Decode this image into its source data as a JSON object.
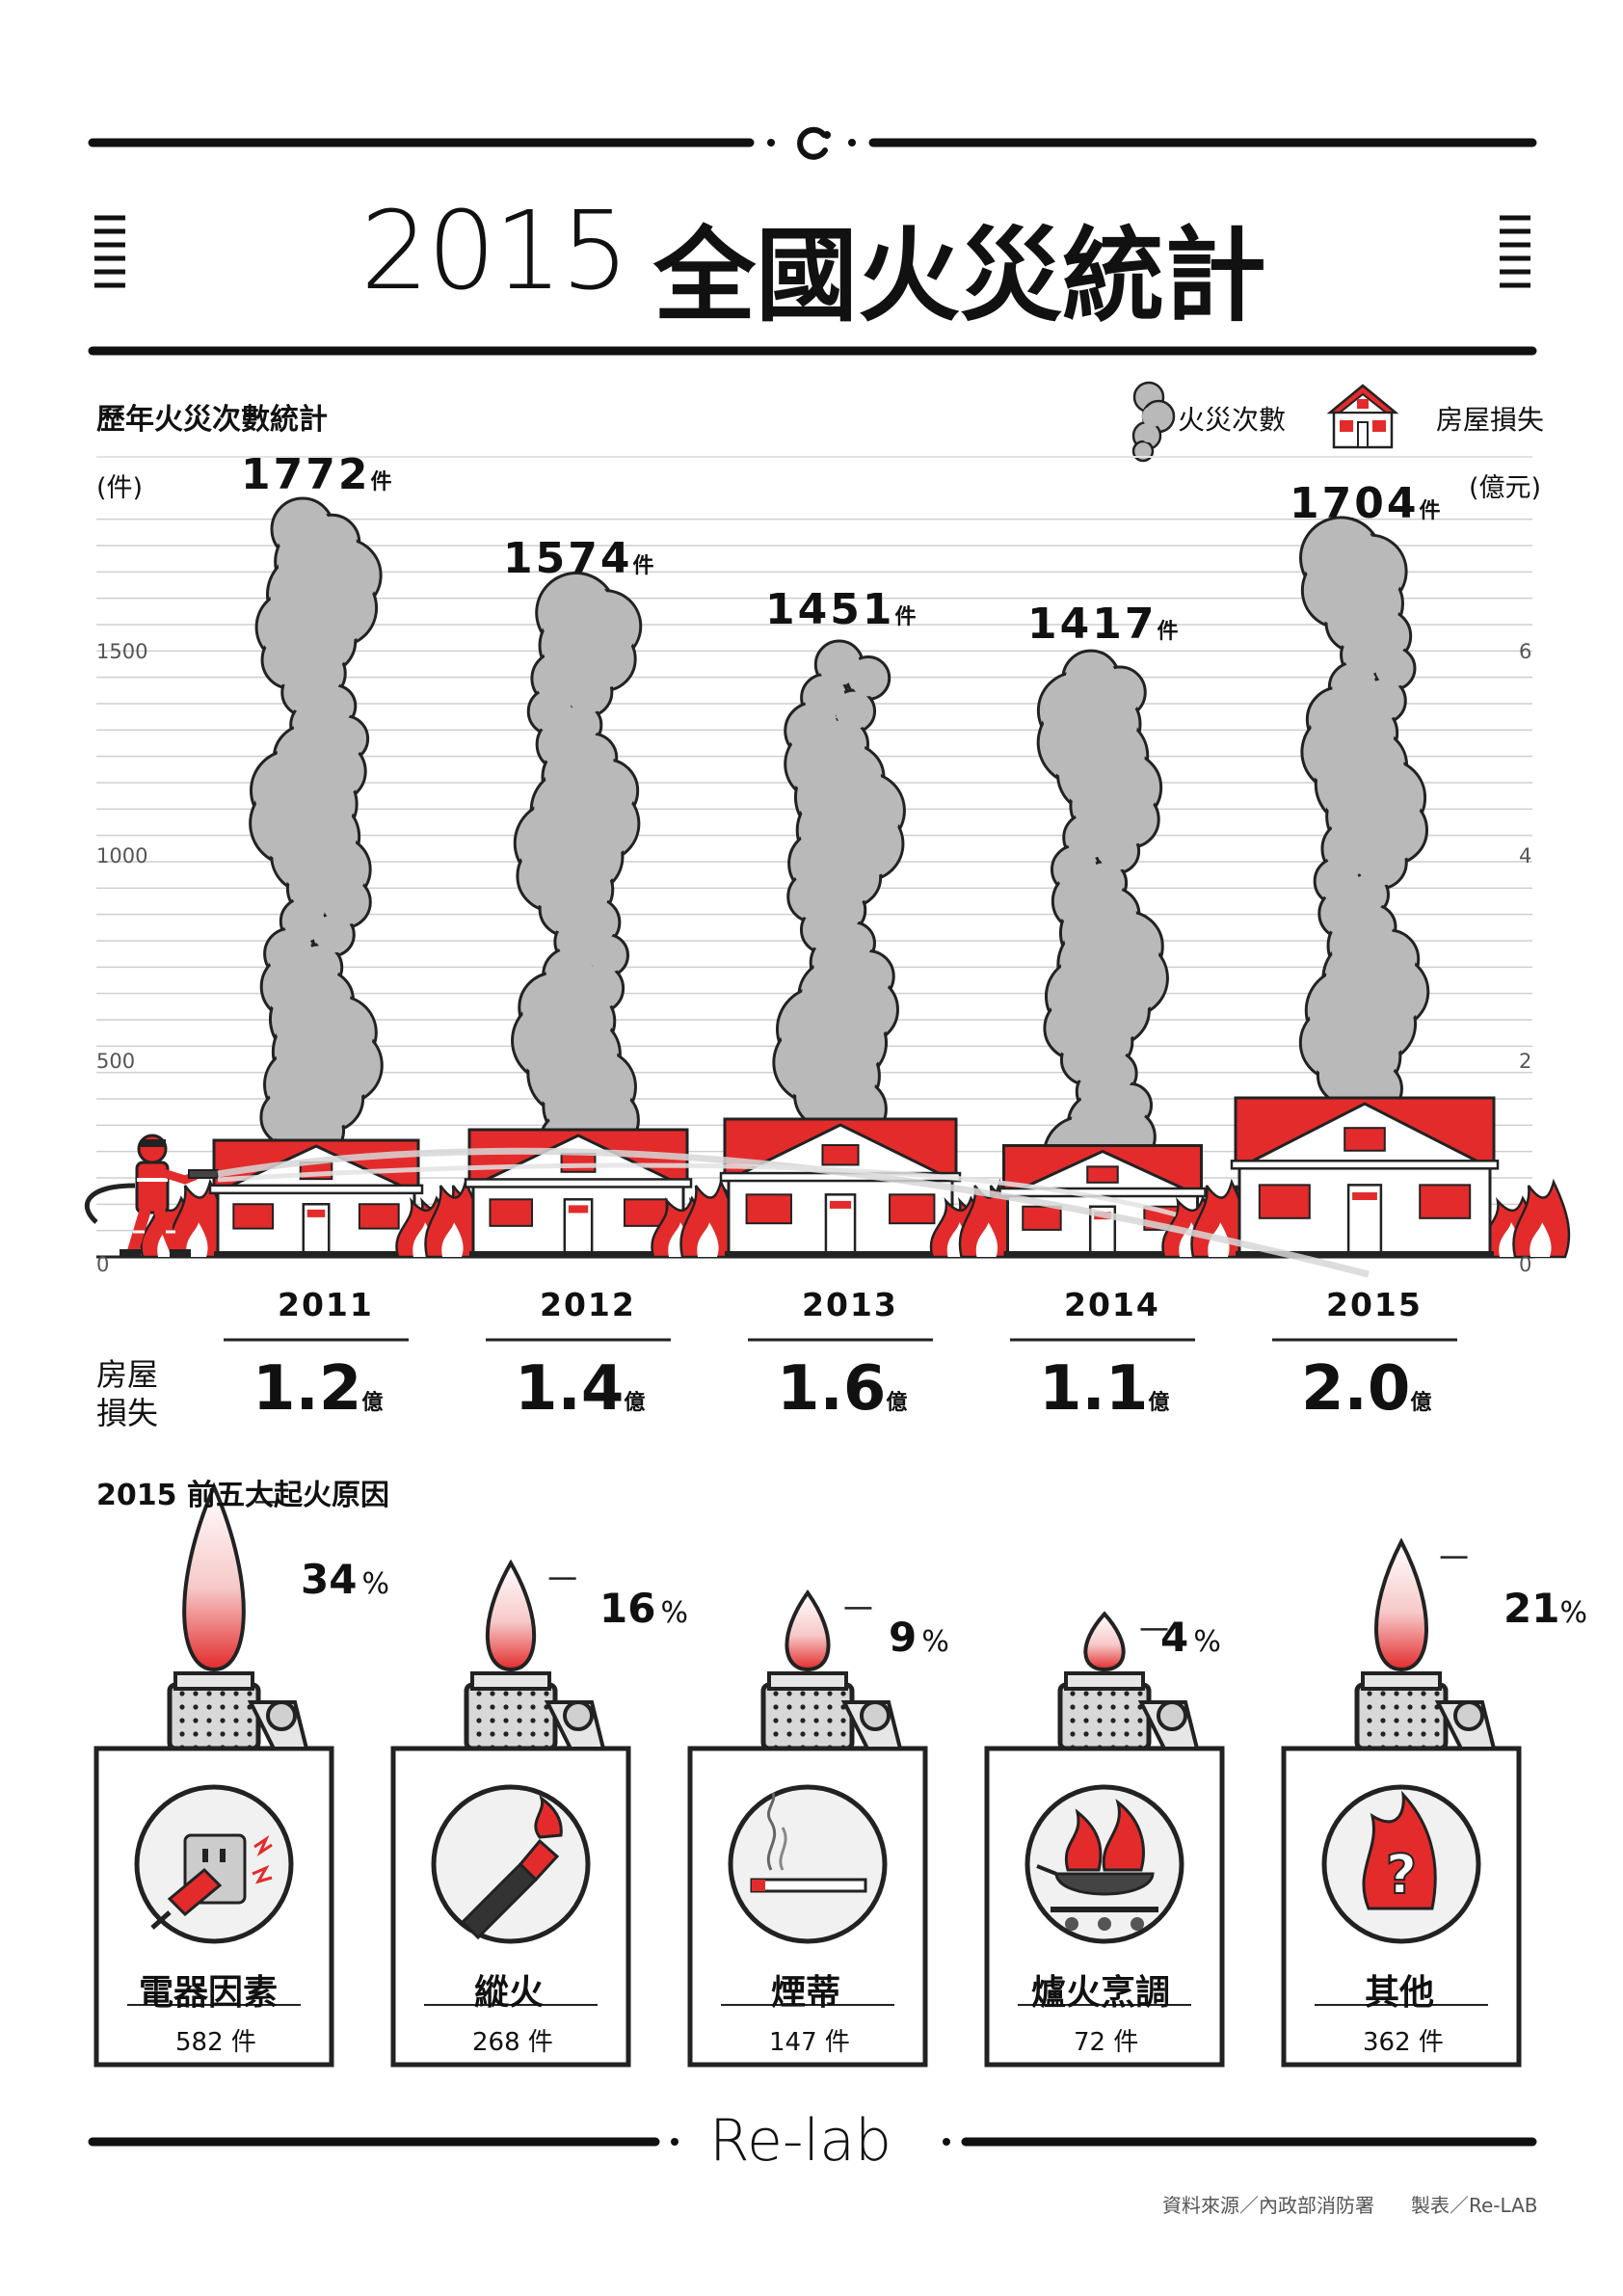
{
  "title": {
    "year": "2015",
    "text": "全國火災統計"
  },
  "section1": {
    "heading": "歷年火災次數統計"
  },
  "legend": {
    "fires": "火災次數",
    "loss": "房屋損失"
  },
  "axes": {
    "left_unit": "(件)",
    "right_unit": "(億元)"
  },
  "chart_data": [
    {
      "type": "bar",
      "title": "歷年火災次數統計",
      "categories": [
        "2011",
        "2012",
        "2013",
        "2014",
        "2015"
      ],
      "series": [
        {
          "name": "火災次數",
          "unit": "件",
          "values": [
            1772,
            1574,
            1451,
            1417,
            1704
          ],
          "labels": [
            "1772",
            "1574",
            "1451",
            "1417",
            "1704"
          ]
        },
        {
          "name": "房屋損失",
          "unit": "億",
          "values": [
            1.2,
            1.4,
            1.6,
            1.1,
            2.0
          ],
          "labels": [
            "1.2",
            "1.4",
            "1.6",
            "1.1",
            "2.0"
          ]
        }
      ],
      "y_left": {
        "label": "(件)",
        "ylim": [
          0,
          1875
        ],
        "ticks": [
          "0",
          "500",
          "1000",
          "1500"
        ]
      },
      "y_right": {
        "label": "(億元)",
        "ylim": [
          0,
          7.5
        ],
        "ticks": [
          "0",
          "2",
          "4",
          "6"
        ]
      },
      "grid": true,
      "legend_position": "top-right"
    },
    {
      "type": "bar",
      "title": "2015 前五大起火原因",
      "categories": [
        "電器因素",
        "縱火",
        "煙蒂",
        "爐火烹調",
        "其他"
      ],
      "values": [
        34,
        16,
        9,
        4,
        21
      ],
      "counts": [
        582,
        268,
        147,
        72,
        362
      ]
    }
  ],
  "units": {
    "count": "件",
    "loss": "億",
    "pct": "%"
  },
  "loss_label": {
    "line1": "房屋",
    "line2": "損失"
  },
  "section2": {
    "heading": "2015 前五大起火原因"
  },
  "causes": [
    {
      "name": "電器因素",
      "pct": "34",
      "count": "582 件",
      "icon": "electric-plug-icon"
    },
    {
      "name": "縱火",
      "pct": "16",
      "count": "268 件",
      "icon": "molotov-icon"
    },
    {
      "name": "煙蒂",
      "pct": "9",
      "count": "147 件",
      "icon": "cigarette-icon"
    },
    {
      "name": "爐火烹調",
      "pct": "4",
      "count": "72 件",
      "icon": "wok-fire-icon"
    },
    {
      "name": "其他",
      "pct": "21",
      "count": "362 件",
      "icon": "question-fire-icon"
    }
  ],
  "brand": "Re-lab",
  "footer": {
    "source": "資料來源／內政部消防署",
    "producer": "製表／Re-LAB"
  },
  "colors": {
    "red": "#e32b2b",
    "smoke": "#b9b9b9",
    "ink": "#111111",
    "grid": "#cfcfcf",
    "pale": "#f1f1f1"
  }
}
